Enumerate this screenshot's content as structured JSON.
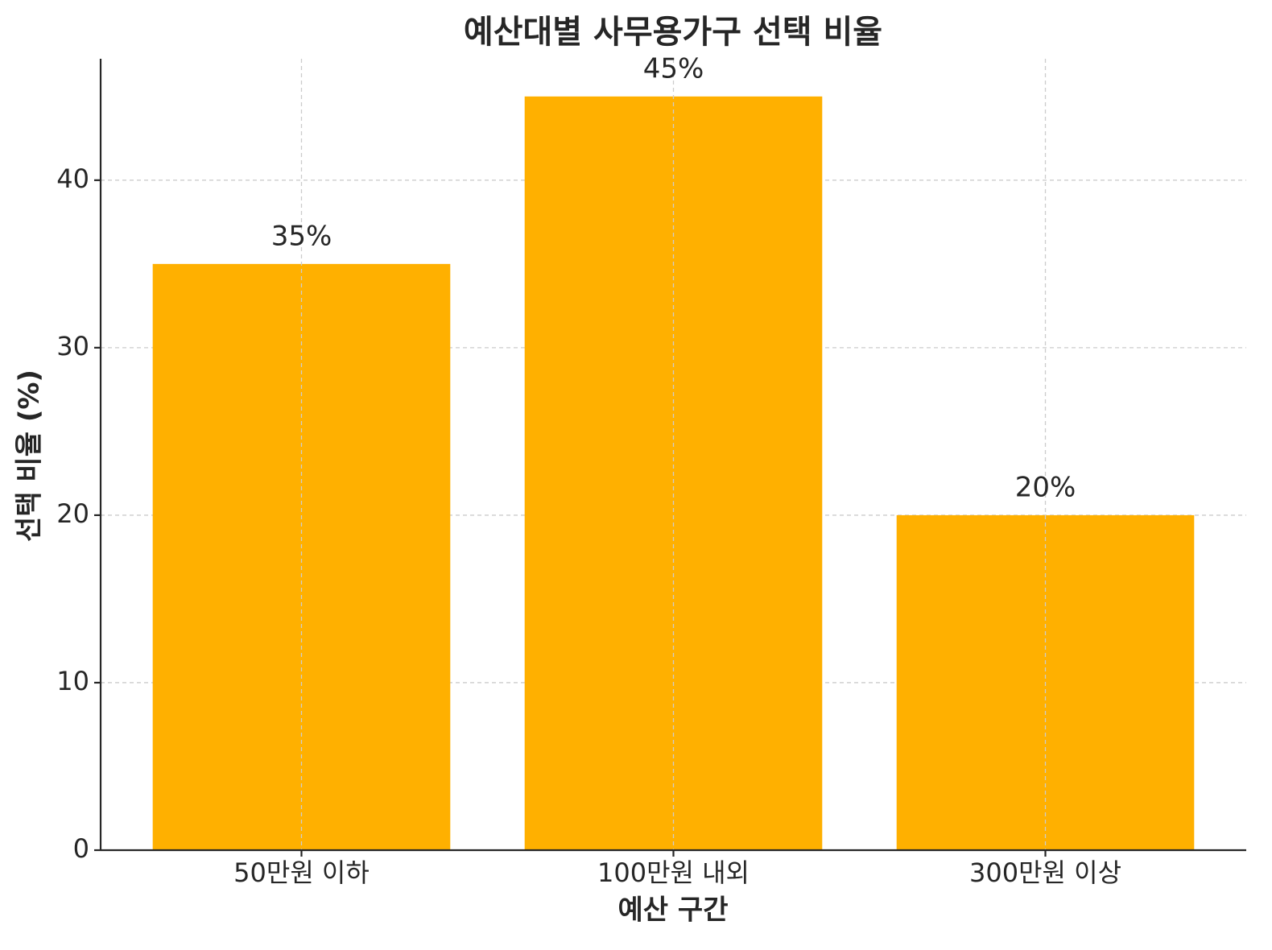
{
  "chart_data": {
    "type": "bar",
    "title": "예산대별 사무용가구 선택 비율",
    "x_label": "예산 구간",
    "y_label": "선택 비율 (%)",
    "categories": [
      "50만원 이하",
      "100만원 내외",
      "300만원 이상"
    ],
    "values": [
      35,
      45,
      20
    ],
    "value_labels": [
      "35%",
      "45%",
      "20%"
    ],
    "color": "#ffb000",
    "ylim": [
      0,
      47.25
    ],
    "yticks": [
      0,
      10,
      20,
      30,
      40
    ],
    "grid": true
  }
}
